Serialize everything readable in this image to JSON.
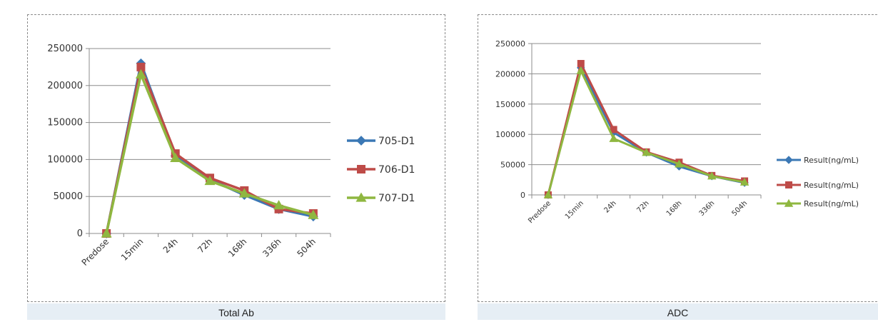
{
  "chart_data": [
    {
      "type": "line",
      "title": "",
      "caption": "Total Ab",
      "xlabel": "",
      "ylabel": "",
      "categories": [
        "Predose",
        "15min",
        "24h",
        "72h",
        "168h",
        "336h",
        "504h"
      ],
      "ylim": [
        0,
        250000
      ],
      "yticks": [
        0,
        50000,
        100000,
        150000,
        200000,
        250000
      ],
      "grid": true,
      "legend_position": "right",
      "series": [
        {
          "name": "705-D1",
          "color": "#3b78b5",
          "marker": "diamond",
          "values": [
            0,
            230000,
            105000,
            73000,
            52000,
            33000,
            23000
          ]
        },
        {
          "name": "706-D1",
          "color": "#be4b48",
          "marker": "square",
          "values": [
            0,
            225000,
            108000,
            75000,
            58000,
            33000,
            27000
          ]
        },
        {
          "name": "707-D1",
          "color": "#8fb740",
          "marker": "triangle",
          "values": [
            0,
            215000,
            102000,
            71000,
            54000,
            38000,
            25000
          ]
        }
      ]
    },
    {
      "type": "line",
      "title": "",
      "caption": "ADC",
      "xlabel": "",
      "ylabel": "",
      "categories": [
        "Predose",
        "15min",
        "24h",
        "72h",
        "168h",
        "336h",
        "504h"
      ],
      "ylim": [
        0,
        250000
      ],
      "yticks": [
        0,
        50000,
        100000,
        150000,
        200000,
        250000
      ],
      "grid": true,
      "legend_position": "right",
      "series": [
        {
          "name": "Result(ng/mL)",
          "color": "#3b78b5",
          "marker": "diamond",
          "values": [
            0,
            210000,
            103000,
            70000,
            47000,
            31000,
            20000
          ]
        },
        {
          "name": "Result(ng/mL)",
          "color": "#be4b48",
          "marker": "square",
          "values": [
            0,
            217000,
            108000,
            71000,
            54000,
            32000,
            23000
          ]
        },
        {
          "name": "Result(ng/mL)",
          "color": "#8fb740",
          "marker": "triangle",
          "values": [
            0,
            205000,
            93000,
            70000,
            51000,
            31000,
            21000
          ]
        }
      ]
    }
  ]
}
